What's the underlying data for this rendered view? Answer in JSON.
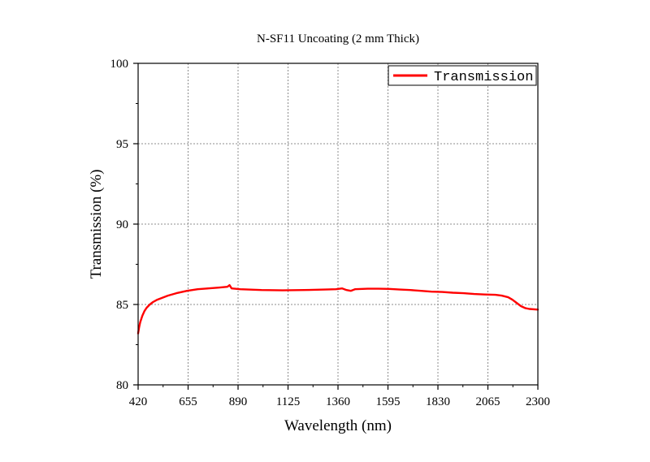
{
  "chart_data": {
    "type": "line",
    "title": "N-SF11 Uncoating (2 mm Thick)",
    "xlabel": "Wavelength (nm)",
    "ylabel": "Transmission (%)",
    "xlim": [
      420,
      2300
    ],
    "ylim": [
      80,
      100
    ],
    "xticks": [
      "420",
      "655",
      "890",
      "1125",
      "1360",
      "1595",
      "1830",
      "2065",
      "2300"
    ],
    "yticks": [
      "80",
      "85",
      "90",
      "95",
      "100"
    ],
    "grid": true,
    "legend_position": "top-right",
    "series": [
      {
        "name": "Transmission",
        "color": "#ff0000",
        "x": [
          420,
          425,
          430,
          440,
          450,
          460,
          475,
          490,
          510,
          530,
          560,
          600,
          650,
          700,
          750,
          800,
          840,
          850,
          860,
          900,
          1000,
          1100,
          1200,
          1300,
          1350,
          1380,
          1400,
          1420,
          1440,
          1500,
          1550,
          1600,
          1650,
          1700,
          1750,
          1800,
          1850,
          1900,
          1950,
          2000,
          2050,
          2100,
          2130,
          2160,
          2180,
          2200,
          2220,
          2240,
          2260,
          2300
        ],
        "y": [
          83.2,
          83.6,
          83.9,
          84.3,
          84.6,
          84.8,
          85.0,
          85.15,
          85.3,
          85.4,
          85.55,
          85.7,
          85.85,
          85.95,
          86.0,
          86.05,
          86.1,
          86.2,
          86.0,
          85.95,
          85.9,
          85.88,
          85.9,
          85.93,
          85.95,
          86.0,
          85.9,
          85.85,
          85.95,
          85.98,
          85.98,
          85.97,
          85.93,
          85.9,
          85.85,
          85.8,
          85.78,
          85.73,
          85.7,
          85.65,
          85.62,
          85.6,
          85.55,
          85.45,
          85.3,
          85.1,
          84.9,
          84.78,
          84.72,
          84.68
        ]
      }
    ]
  }
}
